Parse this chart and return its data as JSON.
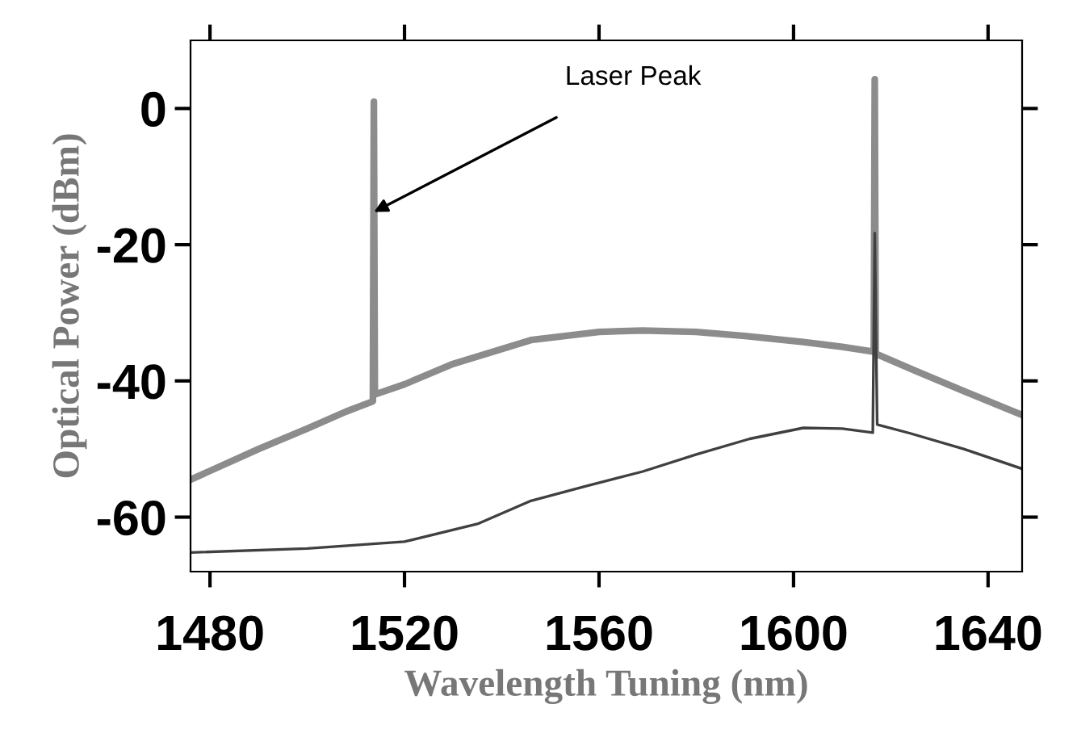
{
  "chart_data": {
    "type": "line",
    "xlabel": "Wavelength Tuning (nm)",
    "ylabel": "Optical Power (dBm)",
    "series": [
      {
        "color": "#8c8c8c",
        "x": [
          1476,
          1490,
          1500,
          1508,
          1513.5,
          1513.7,
          1513.9,
          1520,
          1530,
          1546,
          1560,
          1569,
          1580,
          1590,
          1602,
          1610,
          1616.5,
          1616.7,
          1616.9,
          1625,
          1635,
          1647
        ],
        "values": [
          -54.5,
          -50,
          -47,
          -44.5,
          -43,
          1,
          -42,
          -40.5,
          -37.5,
          -34,
          -32.8,
          -32.6,
          -32.8,
          -33.4,
          -34.3,
          -35,
          -35.7,
          4.3,
          -36,
          -38.5,
          -41.5,
          -45
        ]
      },
      {
        "color": "#404040",
        "x": [
          1476,
          1500,
          1520,
          1535,
          1546,
          1557,
          1569,
          1580,
          1591,
          1602,
          1610,
          1616.3,
          1616.7,
          1617.2,
          1624,
          1635,
          1647
        ],
        "values": [
          -65.2,
          -64.6,
          -63.6,
          -61,
          -57.6,
          -55.5,
          -53.3,
          -50.8,
          -48.5,
          -46.9,
          -47,
          -47.6,
          -18.3,
          -46.4,
          -47.7,
          -50,
          -52.9
        ]
      }
    ],
    "xlim": [
      1476,
      1647
    ],
    "xticks": [
      1480,
      1520,
      1560,
      1600,
      1640
    ],
    "ylim": [
      -68,
      10
    ],
    "yticks": [
      0,
      -20,
      -40,
      -60
    ],
    "annotations": [
      {
        "text": "Laser Peak",
        "x": 1513.7,
        "y": -15.2
      }
    ],
    "grid": false,
    "marker": "none",
    "line_style": "solid"
  }
}
